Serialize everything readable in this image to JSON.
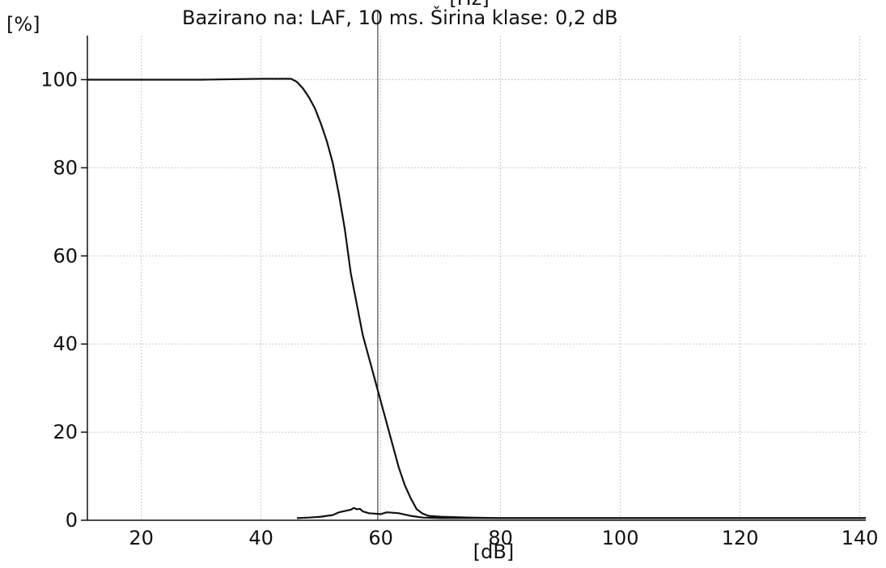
{
  "chart_data": {
    "type": "line",
    "top_unit": "[Hz]",
    "title": "Bazirano na: LAF, 10 ms. Širina klase: 0,2 dB",
    "ylabel": "[%]",
    "xlabel": "[dB]",
    "xlim": [
      11,
      141
    ],
    "ylim": [
      0,
      110
    ],
    "x_ticks": [
      20,
      40,
      60,
      80,
      100,
      120,
      140
    ],
    "y_ticks": [
      0,
      20,
      40,
      60,
      80,
      100
    ],
    "grid": true,
    "marker_line_x": 59.5,
    "series": [
      {
        "x": [
          11,
          20,
          30,
          40,
          45,
          46,
          47,
          48,
          49,
          50,
          51,
          52,
          53,
          54,
          55,
          56,
          57,
          58,
          59,
          60,
          61,
          62,
          63,
          64,
          65,
          66,
          67,
          68,
          70,
          75,
          80,
          100,
          120,
          141
        ],
        "y": [
          100,
          100,
          100,
          100.2,
          100.2,
          99.5,
          98,
          96,
          93.5,
          90,
          86,
          81,
          74,
          66,
          56,
          49,
          42,
          37,
          32,
          27,
          22,
          17,
          12,
          8,
          5,
          2.5,
          1.5,
          1,
          0.8,
          0.6,
          0.5,
          0.5,
          0.5,
          0.5
        ]
      },
      {
        "x": [
          46,
          48,
          50,
          52,
          53,
          54,
          55,
          55.5,
          56,
          56.5,
          57,
          58,
          59,
          60,
          61,
          62,
          63,
          64,
          65,
          66,
          67,
          70,
          80,
          100,
          120,
          141
        ],
        "y": [
          0.5,
          0.6,
          0.8,
          1.2,
          1.8,
          2.1,
          2.4,
          2.8,
          2.5,
          2.6,
          2.0,
          1.6,
          1.5,
          1.4,
          1.8,
          1.7,
          1.6,
          1.3,
          1.0,
          0.8,
          0.6,
          0.5,
          0.5,
          0.5,
          0.5,
          0.5
        ]
      }
    ]
  }
}
